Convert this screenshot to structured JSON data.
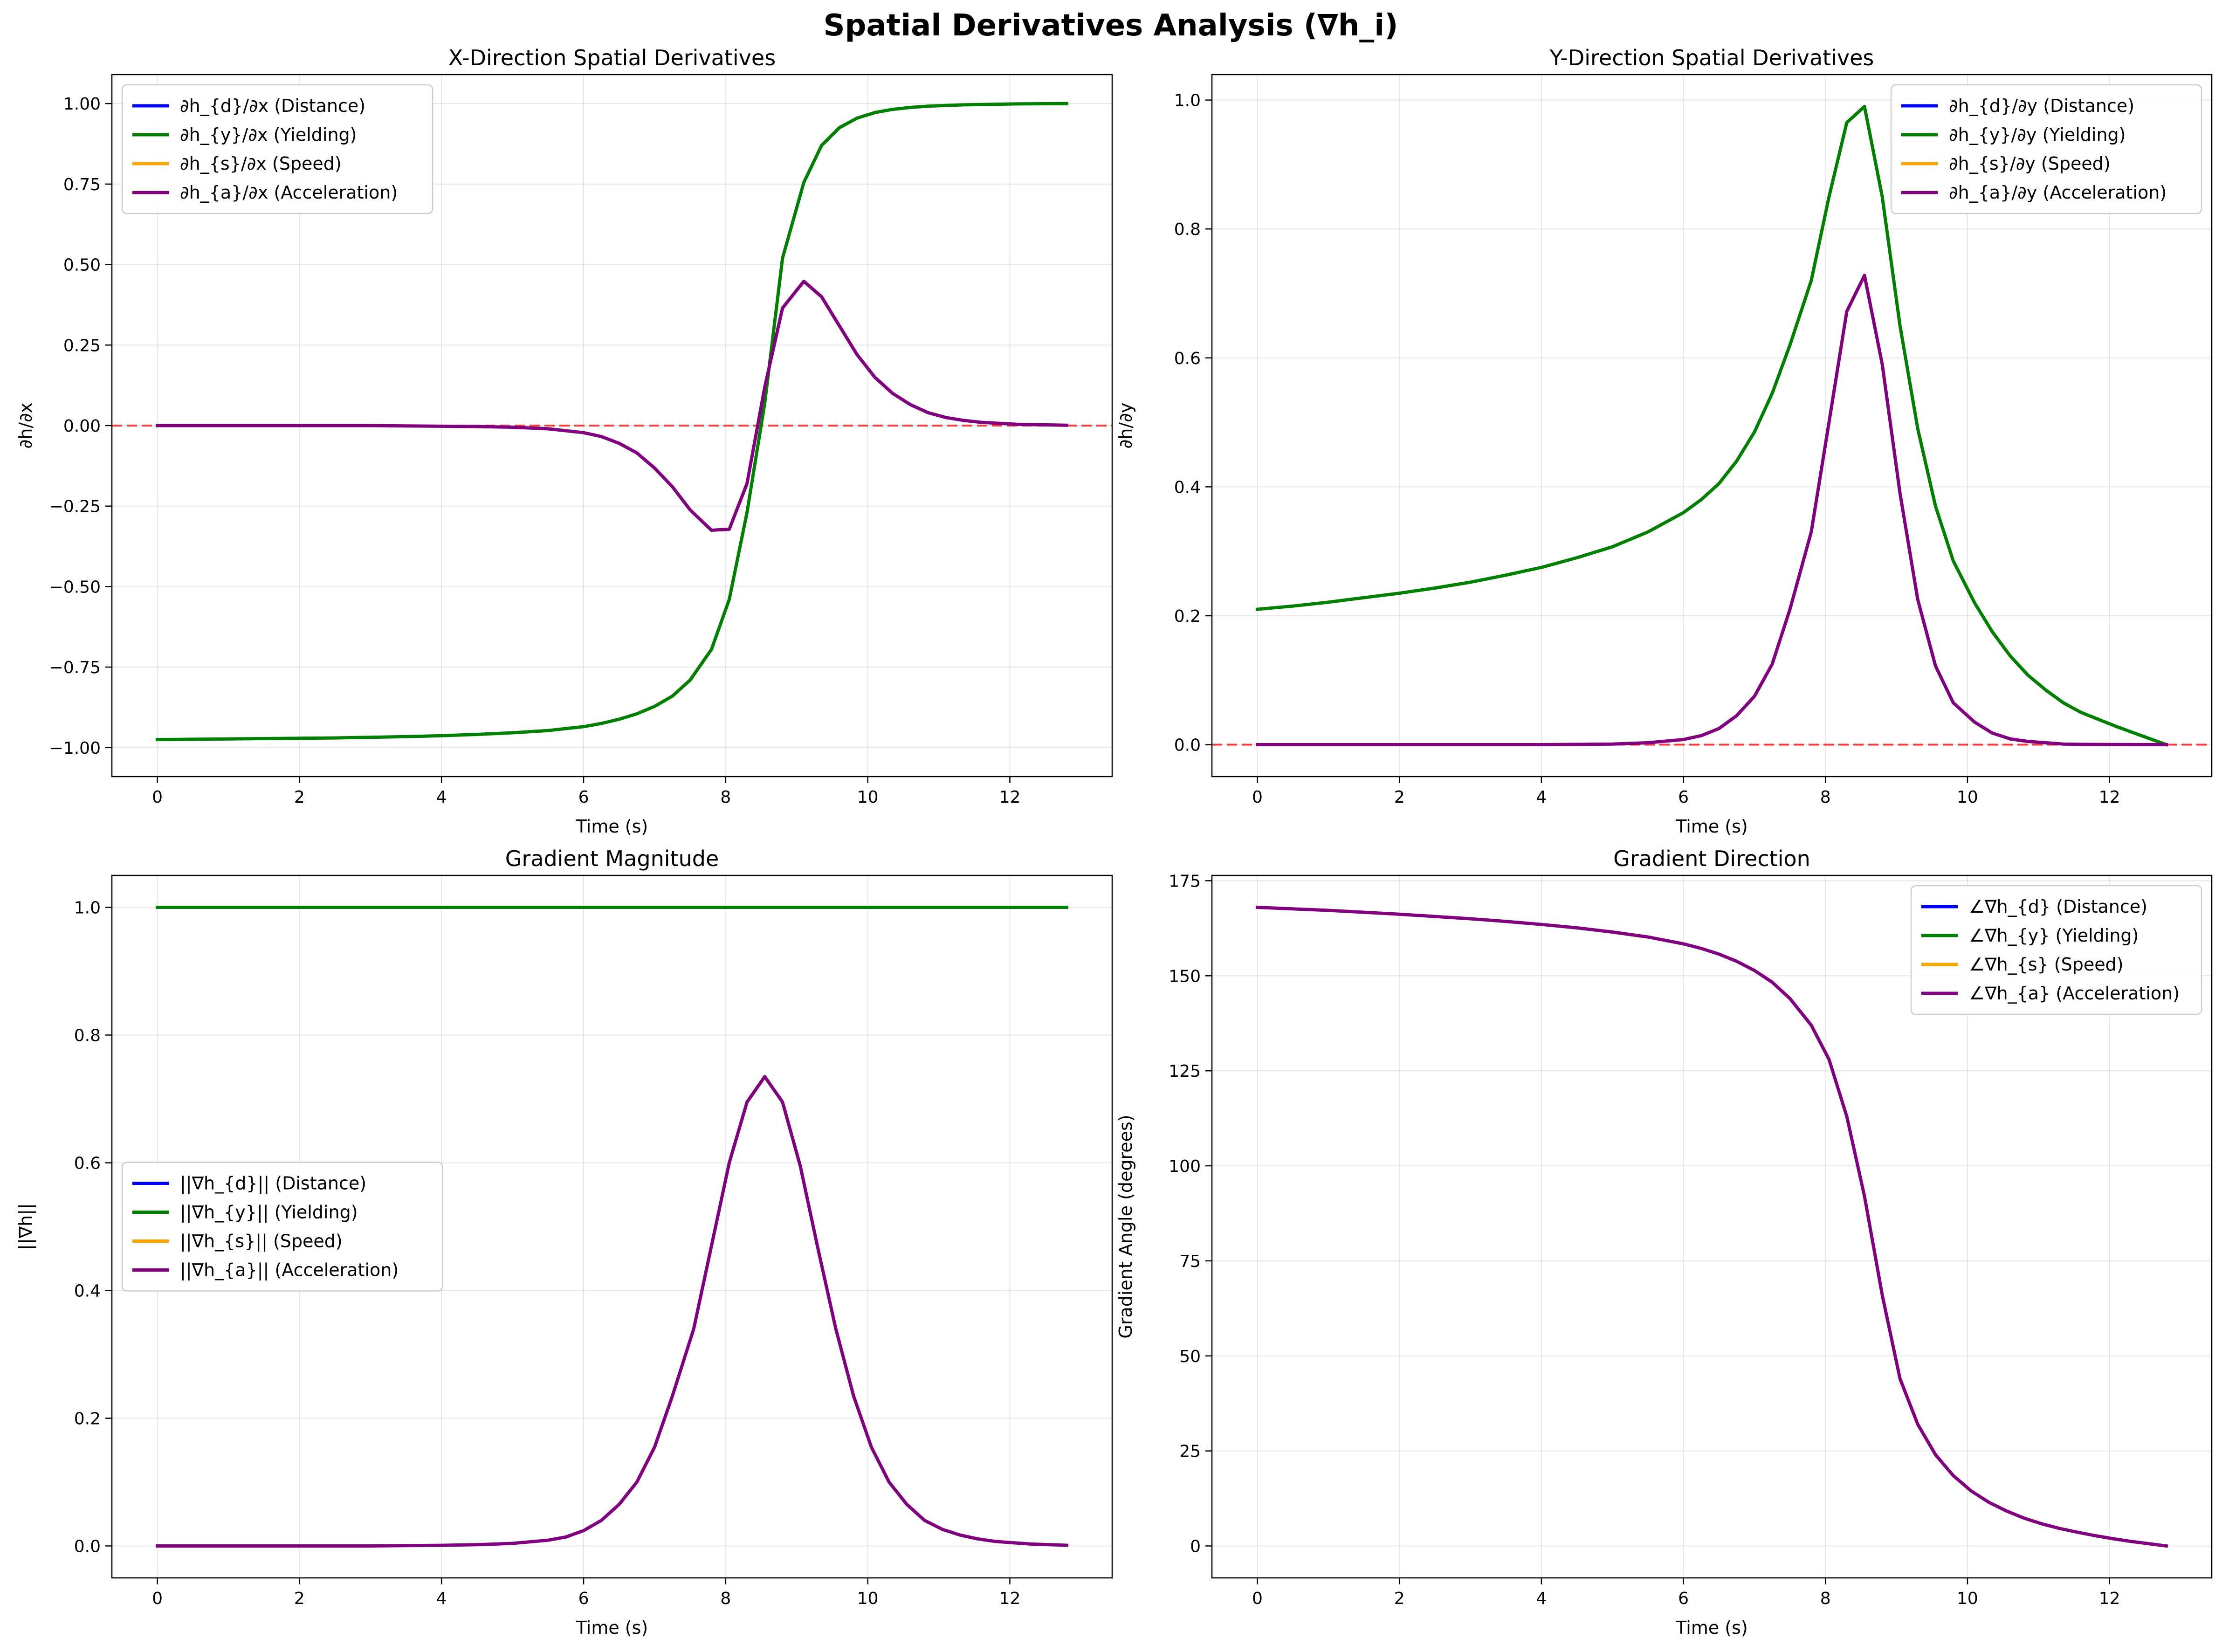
{
  "figure": {
    "suptitle": "Spatial Derivatives Analysis (∇h_i)"
  },
  "chart_data": [
    {
      "type": "line",
      "title": "X-Direction Spatial Derivatives",
      "xlabel": "Time (s)",
      "ylabel": "∂h/∂x",
      "xlim": [
        -0.64,
        13.44
      ],
      "ylim": [
        -1.09,
        1.09
      ],
      "xticks": [
        0,
        2,
        4,
        6,
        8,
        10,
        12
      ],
      "yticks": [
        -1.0,
        -0.75,
        -0.5,
        -0.25,
        0.0,
        0.25,
        0.5,
        0.75,
        1.0
      ],
      "ytick_decimals": 2,
      "grid": true,
      "legend": "upper-left",
      "hline": {
        "y": 0,
        "color": "#ff0000",
        "style": "dashed"
      },
      "x": [
        0,
        0.5,
        1,
        1.5,
        2,
        2.5,
        3,
        3.5,
        4,
        4.5,
        5,
        5.5,
        6,
        6.25,
        6.5,
        6.75,
        7,
        7.25,
        7.5,
        7.8,
        8.05,
        8.3,
        8.55,
        8.8,
        9.1,
        9.35,
        9.6,
        9.85,
        10.1,
        10.35,
        10.6,
        10.85,
        11.1,
        11.35,
        11.6,
        12.1,
        12.8
      ],
      "series": [
        {
          "name": "∂h_{d}/∂x (Distance)",
          "color": "#0000ff",
          "values": null
        },
        {
          "name": "∂h_{y}/∂x (Yielding)",
          "color": "#008000",
          "values": [
            -0.975,
            -0.974,
            -0.973,
            -0.972,
            -0.971,
            -0.97,
            -0.968,
            -0.966,
            -0.963,
            -0.959,
            -0.954,
            -0.947,
            -0.935,
            -0.925,
            -0.912,
            -0.895,
            -0.872,
            -0.84,
            -0.79,
            -0.695,
            -0.54,
            -0.27,
            0.07,
            0.52,
            0.755,
            0.87,
            0.925,
            0.955,
            0.972,
            0.982,
            0.988,
            0.992,
            0.994,
            0.996,
            0.997,
            0.999,
            1.0
          ]
        },
        {
          "name": "∂h_{s}/∂x (Speed)",
          "color": "#ffa500",
          "values": null
        },
        {
          "name": "∂h_{a}/∂x (Acceleration)",
          "color": "#800080",
          "values": [
            0,
            0,
            0,
            0,
            0,
            0,
            0,
            -0.001,
            -0.002,
            -0.003,
            -0.005,
            -0.01,
            -0.022,
            -0.034,
            -0.055,
            -0.085,
            -0.132,
            -0.19,
            -0.262,
            -0.325,
            -0.322,
            -0.18,
            0.12,
            0.365,
            0.448,
            0.4,
            0.31,
            0.22,
            0.15,
            0.1,
            0.065,
            0.04,
            0.025,
            0.016,
            0.01,
            0.004,
            0.001
          ]
        }
      ]
    },
    {
      "type": "line",
      "title": "Y-Direction Spatial Derivatives",
      "xlabel": "Time (s)",
      "ylabel": "∂h/∂y",
      "xlim": [
        -0.64,
        13.44
      ],
      "ylim": [
        -0.0495,
        1.0395
      ],
      "xticks": [
        0,
        2,
        4,
        6,
        8,
        10,
        12
      ],
      "yticks": [
        0.0,
        0.2,
        0.4,
        0.6,
        0.8,
        1.0
      ],
      "ytick_decimals": 1,
      "grid": true,
      "legend": "upper-right",
      "hline": {
        "y": 0,
        "color": "#ff0000",
        "style": "dashed"
      },
      "x": [
        0,
        0.5,
        1,
        1.5,
        2,
        2.5,
        3,
        3.5,
        4,
        4.5,
        5,
        5.5,
        6,
        6.25,
        6.5,
        6.75,
        7,
        7.25,
        7.5,
        7.8,
        8.05,
        8.3,
        8.55,
        8.8,
        9.05,
        9.3,
        9.55,
        9.8,
        10.1,
        10.35,
        10.6,
        10.85,
        11.1,
        11.35,
        11.6,
        12.1,
        12.8
      ],
      "series": [
        {
          "name": "∂h_{d}/∂y (Distance)",
          "color": "#0000ff",
          "values": null
        },
        {
          "name": "∂h_{y}/∂y (Yielding)",
          "color": "#008000",
          "values": [
            0.21,
            0.215,
            0.221,
            0.228,
            0.235,
            0.243,
            0.252,
            0.263,
            0.275,
            0.29,
            0.307,
            0.33,
            0.36,
            0.38,
            0.405,
            0.44,
            0.485,
            0.545,
            0.62,
            0.72,
            0.85,
            0.965,
            0.99,
            0.85,
            0.65,
            0.49,
            0.37,
            0.285,
            0.22,
            0.175,
            0.138,
            0.108,
            0.085,
            0.065,
            0.05,
            0.028,
            0.0
          ]
        },
        {
          "name": "∂h_{s}/∂y (Speed)",
          "color": "#ffa500",
          "values": null
        },
        {
          "name": "∂h_{a}/∂y (Acceleration)",
          "color": "#800080",
          "values": [
            0,
            0,
            0,
            0,
            0,
            0,
            0,
            0,
            0,
            0.0005,
            0.001,
            0.003,
            0.008,
            0.014,
            0.025,
            0.045,
            0.075,
            0.125,
            0.21,
            0.33,
            0.5,
            0.672,
            0.728,
            0.59,
            0.39,
            0.225,
            0.122,
            0.065,
            0.035,
            0.018,
            0.009,
            0.005,
            0.003,
            0.001,
            0.0005,
            0.0002,
            0
          ]
        }
      ]
    },
    {
      "type": "line",
      "title": "Gradient Magnitude",
      "xlabel": "Time (s)",
      "ylabel": "||∇h||",
      "xlim": [
        -0.64,
        13.44
      ],
      "ylim": [
        -0.05,
        1.05
      ],
      "xticks": [
        0,
        2,
        4,
        6,
        8,
        10,
        12
      ],
      "yticks": [
        0.0,
        0.2,
        0.4,
        0.6,
        0.8,
        1.0
      ],
      "ytick_decimals": 1,
      "grid": true,
      "legend": "center-left",
      "hline": null,
      "x": [
        0,
        0.5,
        1,
        1.5,
        2,
        2.5,
        3,
        3.5,
        4,
        4.5,
        5,
        5.5,
        5.75,
        6,
        6.25,
        6.5,
        6.75,
        7,
        7.25,
        7.55,
        7.8,
        8.05,
        8.3,
        8.55,
        8.8,
        9.05,
        9.3,
        9.55,
        9.8,
        10.05,
        10.3,
        10.55,
        10.8,
        11.05,
        11.3,
        11.55,
        11.8,
        12.05,
        12.3,
        12.8
      ],
      "series": [
        {
          "name": "||∇h_{d}|| (Distance)",
          "color": "#0000ff",
          "values": null
        },
        {
          "name": "||∇h_{y}|| (Yielding)",
          "color": "#008000",
          "values": [
            1,
            1,
            1,
            1,
            1,
            1,
            1,
            1,
            1,
            1,
            1,
            1,
            1,
            1,
            1,
            1,
            1,
            1,
            1,
            1,
            1,
            1,
            1,
            1,
            1,
            1,
            1,
            1,
            1,
            1,
            1,
            1,
            1,
            1,
            1,
            1,
            1,
            1,
            1,
            1
          ]
        },
        {
          "name": "||∇h_{s}|| (Speed)",
          "color": "#ffa500",
          "values": null
        },
        {
          "name": "||∇h_{a}|| (Acceleration)",
          "color": "#800080",
          "values": [
            0,
            0,
            0,
            0,
            0,
            0,
            0,
            0.0005,
            0.001,
            0.002,
            0.004,
            0.009,
            0.014,
            0.024,
            0.04,
            0.065,
            0.1,
            0.155,
            0.235,
            0.34,
            0.47,
            0.6,
            0.695,
            0.735,
            0.695,
            0.595,
            0.465,
            0.34,
            0.235,
            0.155,
            0.1,
            0.065,
            0.04,
            0.026,
            0.017,
            0.011,
            0.007,
            0.005,
            0.003,
            0.001
          ]
        }
      ]
    },
    {
      "type": "line",
      "title": "Gradient Direction",
      "xlabel": "Time (s)",
      "ylabel": "Gradient Angle (degrees)",
      "xlim": [
        -0.64,
        13.44
      ],
      "ylim": [
        -8.4,
        176.4
      ],
      "xticks": [
        0,
        2,
        4,
        6,
        8,
        10,
        12
      ],
      "yticks": [
        0,
        25,
        50,
        75,
        100,
        125,
        150,
        175
      ],
      "ytick_decimals": 0,
      "grid": true,
      "legend": "upper-right",
      "hline": null,
      "x": [
        0,
        0.5,
        1,
        1.5,
        2,
        2.5,
        3,
        3.5,
        4,
        4.5,
        5,
        5.5,
        6,
        6.25,
        6.5,
        6.75,
        7,
        7.25,
        7.5,
        7.8,
        8.05,
        8.3,
        8.55,
        8.8,
        9.05,
        9.3,
        9.55,
        9.8,
        10.05,
        10.3,
        10.55,
        10.8,
        11.05,
        11.3,
        11.55,
        11.8,
        12.05,
        12.3,
        12.8
      ],
      "series": [
        {
          "name": "∠∇h_{d} (Distance)",
          "color": "#0000ff",
          "values": null
        },
        {
          "name": "∠∇h_{y} (Yielding)",
          "color": "#008000",
          "values": null
        },
        {
          "name": "∠∇h_{s} (Speed)",
          "color": "#ffa500",
          "values": null
        },
        {
          "name": "∠∇h_{a} (Acceleration)",
          "color": "#800080",
          "values": [
            168,
            167.6,
            167.2,
            166.7,
            166.2,
            165.6,
            165,
            164.3,
            163.5,
            162.6,
            161.5,
            160.2,
            158.4,
            157.2,
            155.7,
            153.8,
            151.4,
            148.3,
            144,
            137,
            128,
            113,
            92,
            66,
            44,
            32,
            24,
            18.5,
            14.5,
            11.5,
            9.2,
            7.3,
            5.8,
            4.6,
            3.6,
            2.7,
            1.9,
            1.2,
            0
          ]
        }
      ]
    }
  ]
}
